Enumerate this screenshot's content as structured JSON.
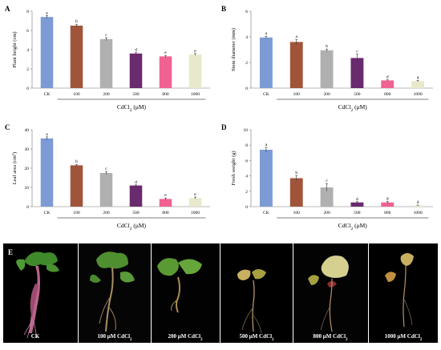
{
  "chart_data": [
    {
      "type": "bar",
      "panel": "A",
      "ylabel": "Plant height (cm)",
      "xlabel_prefix": "CdCl",
      "xlabel_sub": "2",
      "xlabel_suffix": " (μM)",
      "ylim": [
        0,
        8
      ],
      "yticks": [
        "0",
        "2",
        "4",
        "6",
        "8"
      ],
      "categories": [
        "CK",
        "100",
        "200",
        "500",
        "800",
        "1000"
      ],
      "values": [
        7.4,
        6.5,
        5.1,
        3.6,
        3.3,
        3.5
      ],
      "errors": [
        0.15,
        0.15,
        0.15,
        0.1,
        0.1,
        0.1
      ],
      "letters": [
        "a",
        "b",
        "c",
        "d",
        "e",
        "e"
      ],
      "colors": [
        "#7c9bd4",
        "#a0553a",
        "#b0b0b0",
        "#6a2a6e",
        "#f06292",
        "#e8e9cc"
      ]
    },
    {
      "type": "bar",
      "panel": "B",
      "ylabel": "Stem diameter (mm)",
      "xlabel_prefix": "CdCl",
      "xlabel_sub": "2",
      "xlabel_suffix": " (μM)",
      "ylim": [
        0,
        6
      ],
      "yticks": [
        "0",
        "2",
        "4",
        "6"
      ],
      "categories": [
        "CK",
        "100",
        "200",
        "500",
        "800",
        "1000"
      ],
      "values": [
        3.95,
        3.6,
        2.95,
        2.35,
        0.6,
        0.55
      ],
      "errors": [
        0.1,
        0.2,
        0.1,
        0.3,
        0.05,
        0.05
      ],
      "letters": [
        "a",
        "a",
        "b",
        "c",
        "d",
        "d"
      ],
      "colors": [
        "#7c9bd4",
        "#a0553a",
        "#b0b0b0",
        "#6a2a6e",
        "#f06292",
        "#e8e9cc"
      ]
    },
    {
      "type": "bar",
      "panel": "C",
      "ylabel": "Leaf area (cm²)",
      "xlabel_prefix": "CdCl",
      "xlabel_sub": "2",
      "xlabel_suffix": " (μM)",
      "ylim": [
        0,
        40
      ],
      "yticks": [
        "0",
        "10",
        "20",
        "30",
        "40"
      ],
      "categories": [
        "CK",
        "100",
        "200",
        "500",
        "800",
        "1000"
      ],
      "values": [
        35.5,
        21.5,
        17.5,
        11,
        4,
        4.5
      ],
      "errors": [
        0.8,
        0.5,
        0.8,
        0.3,
        0.5,
        0.5
      ],
      "letters": [
        "a",
        "b",
        "c",
        "d",
        "e",
        "e"
      ],
      "colors": [
        "#7c9bd4",
        "#a0553a",
        "#b0b0b0",
        "#6a2a6e",
        "#f06292",
        "#e8e9cc"
      ]
    },
    {
      "type": "bar",
      "panel": "D",
      "ylabel": "Fresh weight (g)",
      "xlabel_prefix": "CdCl",
      "xlabel_sub": "2",
      "xlabel_suffix": " (μM)",
      "ylim": [
        0,
        10
      ],
      "yticks": [
        "0",
        "2",
        "4",
        "6",
        "8",
        "10"
      ],
      "categories": [
        "CK",
        "100",
        "200",
        "500",
        "800",
        "1000"
      ],
      "values": [
        7.4,
        3.7,
        2.5,
        0.55,
        0.55,
        0.15
      ],
      "errors": [
        0.3,
        0.35,
        0.5,
        0.1,
        0.15,
        0.05
      ],
      "letters": [
        "a",
        "b",
        "c",
        "d",
        "d",
        "d"
      ],
      "colors": [
        "#7c9bd4",
        "#a0553a",
        "#b0b0b0",
        "#6a2a6e",
        "#f06292",
        "#e8e9cc"
      ]
    }
  ],
  "photo": {
    "panel_letter": "E",
    "labels": [
      {
        "main": "CK",
        "sub": ""
      },
      {
        "main": "100 μM CdCl",
        "sub": "2"
      },
      {
        "main": "200 μM CdCl",
        "sub": "2"
      },
      {
        "main": "500 μM CdCl",
        "sub": "2"
      },
      {
        "main": "800 μM CdCl",
        "sub": "2"
      },
      {
        "main": "1000 μM CdCl",
        "sub": "2"
      }
    ]
  }
}
